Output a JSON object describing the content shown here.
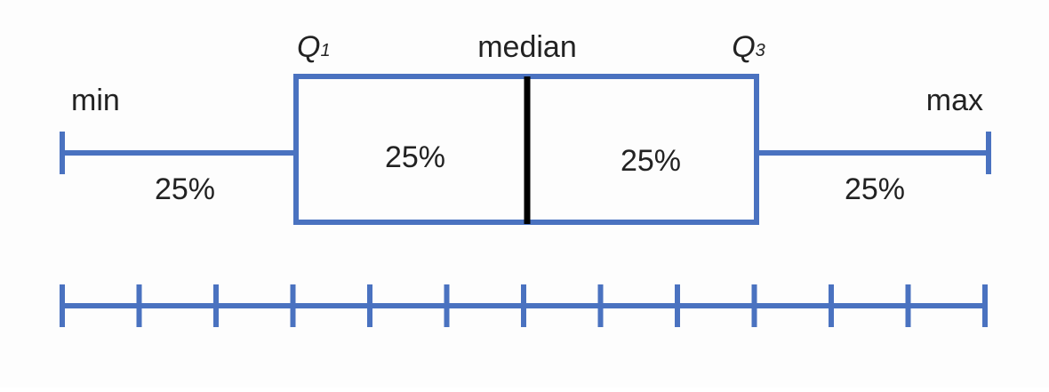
{
  "labels": {
    "min": "min",
    "max": "max",
    "median": "median",
    "q1_letter": "Q",
    "q1_sub": "1",
    "q3_letter": "Q",
    "q3_sub": "3"
  },
  "percentages": {
    "left_whisker": "25%",
    "lower_box": "25%",
    "upper_box": "25%",
    "right_whisker": "25%"
  },
  "colors": {
    "diagram_blue": "#4a72c0",
    "median_line": "#000000",
    "text": "#222222"
  },
  "scale": {
    "tick_count": 13
  }
}
